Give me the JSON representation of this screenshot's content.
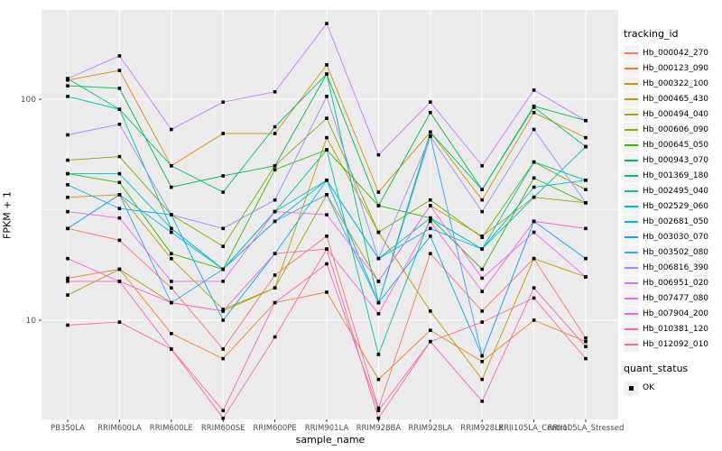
{
  "chart_data": {
    "type": "line",
    "title": "",
    "xlabel": "sample_name",
    "ylabel": "FPKM + 1",
    "x_categories": [
      "PB350LA",
      "RRIM600LA",
      "RRIM600LE",
      "RRIM600SE",
      "RRIM600PE",
      "RRIM901LA",
      "RRIM928BA",
      "RRIM928LA",
      "RRIM928LE",
      "RRII105LA_Control",
      "RRII105LA_Stressed"
    ],
    "y_scale": "log10",
    "y_tick_labels": [
      "100",
      "10"
    ],
    "y_ticks": [
      100,
      10
    ],
    "y_minor_ticks": [
      31.6
    ],
    "ylim": [
      3.5,
      255
    ],
    "grid": true,
    "panel_bg": "#EBEBEB",
    "grid_color": "#FFFFFF",
    "tick_color": "#333333",
    "tick_label_color": "#4D4D4D",
    "marker": "filled-black-square",
    "legend_title": "tracking_id",
    "legend2_title": "quant_status",
    "legend2_items": [
      "OK"
    ],
    "legend_position": "right",
    "series": [
      {
        "name": "Hb_000042_270",
        "color": "#F8766D",
        "values": [
          26,
          23,
          14,
          7.4,
          16,
          24,
          4.0,
          20,
          11,
          19,
          8.3
        ]
      },
      {
        "name": "Hb_000123_090",
        "color": "#EA8331",
        "values": [
          15.5,
          17,
          8.7,
          6.7,
          12,
          13.4,
          5.4,
          9.0,
          6.5,
          10,
          8.0
        ]
      },
      {
        "name": "Hb_000322_100",
        "color": "#D89000",
        "values": [
          122,
          135,
          50,
          70,
          70,
          143,
          38,
          71,
          35,
          87,
          67
        ]
      },
      {
        "name": "Hb_000465_430",
        "color": "#C09B00",
        "values": [
          36,
          37,
          19,
          11.2,
          14,
          67,
          25,
          11,
          5.4,
          19,
          15.7
        ]
      },
      {
        "name": "Hb_000494_040",
        "color": "#A3A500",
        "values": [
          13,
          17,
          12,
          11,
          14,
          37,
          15,
          33,
          24,
          36,
          34
        ]
      },
      {
        "name": "Hb_000606_090",
        "color": "#7CAE00",
        "values": [
          53,
          55,
          30,
          21.6,
          50,
          82,
          25,
          35,
          23.7,
          52,
          39
        ]
      },
      {
        "name": "Hb_000645_050",
        "color": "#39B600",
        "values": [
          46,
          42,
          20,
          17,
          48,
          59,
          33,
          29,
          17,
          44,
          34
        ]
      },
      {
        "name": "Hb_000943_070",
        "color": "#00BB4E",
        "values": [
          115,
          112,
          40,
          45,
          50,
          130,
          33,
          87,
          39,
          93,
          80
        ]
      },
      {
        "name": "Hb_001369_180",
        "color": "#00BF7D",
        "values": [
          124,
          90,
          50,
          38,
          75,
          130,
          12,
          71,
          39,
          92,
          61
        ]
      },
      {
        "name": "Hb_002495_040",
        "color": "#00C1A3",
        "values": [
          103,
          90,
          26,
          17,
          31,
          59,
          7.0,
          29,
          21,
          52,
          43
        ]
      },
      {
        "name": "Hb_002529_060",
        "color": "#00BFC4",
        "values": [
          46,
          46,
          26,
          17,
          31,
          43,
          19,
          29,
          21,
          36,
          61
        ]
      },
      {
        "name": "Hb_002681_050",
        "color": "#00BAE0",
        "values": [
          26,
          37,
          25,
          17,
          28,
          43,
          19,
          26,
          21,
          40,
          43
        ]
      },
      {
        "name": "Hb_003030_070",
        "color": "#00B0F6",
        "values": [
          41,
          32,
          30,
          10,
          20,
          43,
          12,
          24,
          6.9,
          28,
          19
        ]
      },
      {
        "name": "Hb_003502_080",
        "color": "#35A2FF",
        "values": [
          26,
          37,
          12,
          17,
          28,
          37,
          12,
          68,
          6.9,
          28,
          19
        ]
      },
      {
        "name": "Hb_006816_390",
        "color": "#9590FF",
        "values": [
          69,
          77,
          30,
          26,
          35,
          103,
          19,
          68,
          31,
          73,
          34
        ]
      },
      {
        "name": "Hb_006951_020",
        "color": "#C77CFF",
        "values": [
          124,
          157,
          73,
          97,
          108,
          220,
          56,
          97,
          50,
          110,
          80
        ]
      },
      {
        "name": "Hb_007477_080",
        "color": "#E76BF3",
        "values": [
          31,
          29,
          15,
          15,
          31,
          30,
          15,
          33,
          15.5,
          25,
          15.7
        ]
      },
      {
        "name": "Hb_007904_200",
        "color": "#FA62DB",
        "values": [
          19,
          15,
          12,
          11,
          20,
          21,
          10.7,
          28,
          13.5,
          28,
          26
        ]
      },
      {
        "name": "Hb_010381_120",
        "color": "#FF62BC",
        "values": [
          15,
          15,
          7.4,
          3.9,
          12,
          18,
          3.9,
          8.0,
          4.3,
          14,
          7.6
        ]
      },
      {
        "name": "Hb_012092_010",
        "color": "#FF6A98",
        "values": [
          9.5,
          9.8,
          7.4,
          3.6,
          8.4,
          21,
          3.6,
          8.0,
          9.8,
          12.6,
          6.7
        ]
      }
    ]
  }
}
